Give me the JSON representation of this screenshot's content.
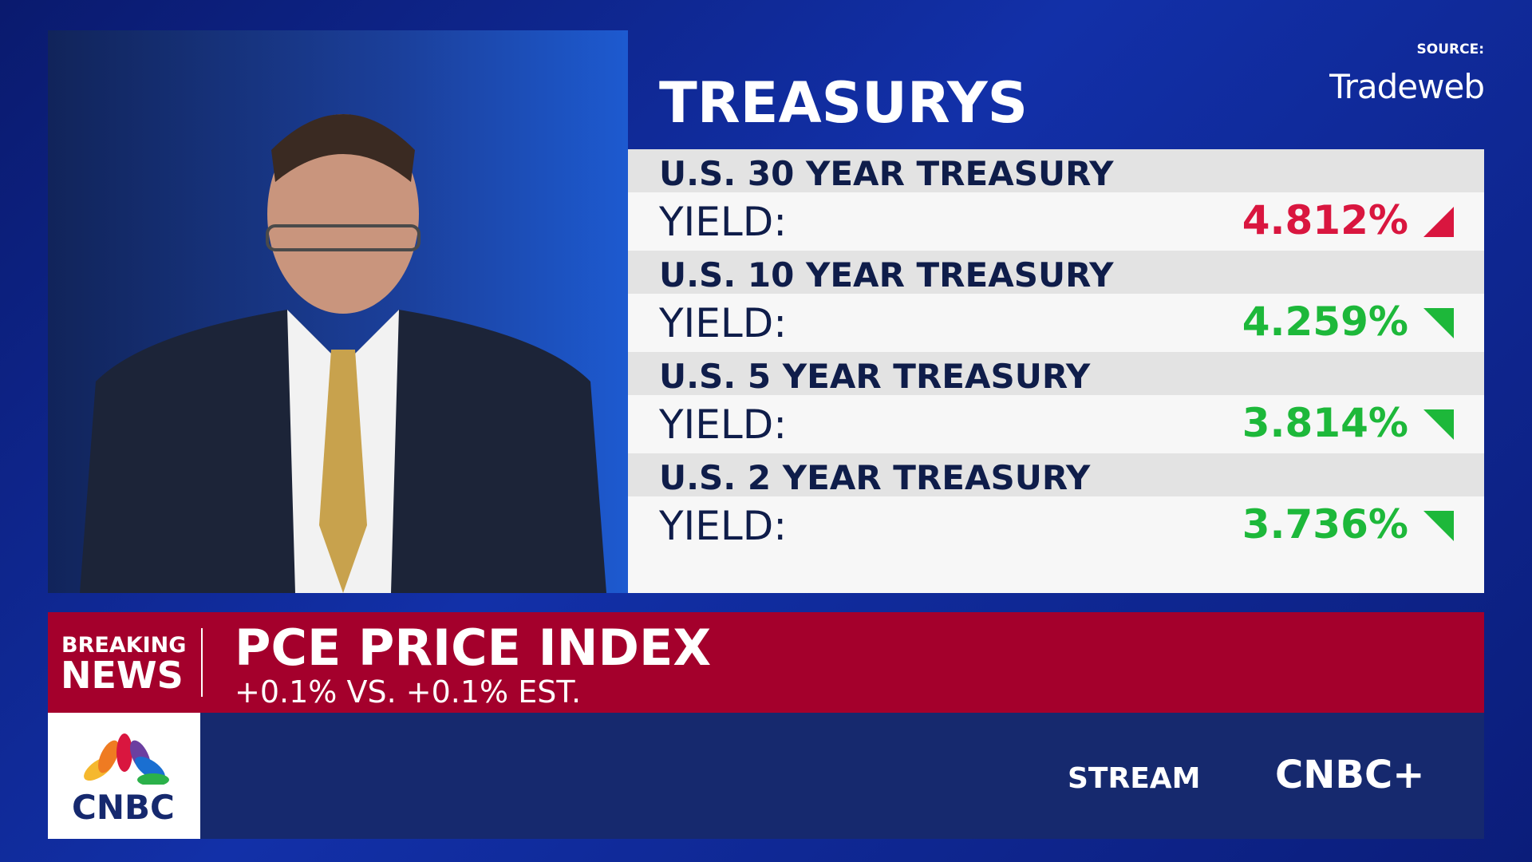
{
  "source": {
    "label": "SOURCE:",
    "name": "Tradeweb"
  },
  "panel": {
    "title": "TREASURYS",
    "rows": [
      {
        "name": "U.S. 30 YEAR TREASURY",
        "label": "YIELD:",
        "value": "4.812%",
        "direction": "up",
        "color": "#d9163f"
      },
      {
        "name": "U.S. 10 YEAR TREASURY",
        "label": "YIELD:",
        "value": "4.259%",
        "direction": "down",
        "color": "#1db83a"
      },
      {
        "name": "U.S. 5 YEAR TREASURY",
        "label": "YIELD:",
        "value": "3.814%",
        "direction": "down",
        "color": "#1db83a"
      },
      {
        "name": "U.S. 2 YEAR TREASURY",
        "label": "YIELD:",
        "value": "3.736%",
        "direction": "down",
        "color": "#1db83a"
      }
    ]
  },
  "breaking": {
    "tag_line1": "BREAKING",
    "tag_line2": "NEWS",
    "headline": "PCE PRICE INDEX",
    "subhead": "+0.1% VS. +0.1% EST."
  },
  "footer": {
    "logo": "CNBC",
    "stream": "STREAM",
    "brand": "CNBC+"
  }
}
